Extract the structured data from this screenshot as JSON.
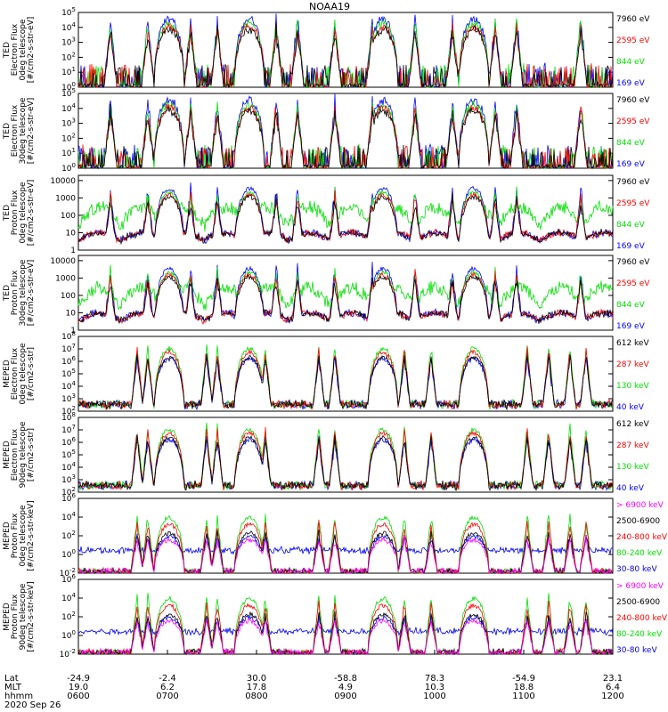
{
  "figure": {
    "title": "NOAA19",
    "date": "2020 Sep 26",
    "colors": {
      "black": "#000000",
      "red": "#ff0000",
      "green": "#00e000",
      "blue": "#0000ff",
      "magenta": "#ff00ff"
    }
  },
  "x_axis": {
    "row_labels": [
      "Lat",
      "MLT",
      "hhmm"
    ],
    "ticks": [
      {
        "lat": "-24.9",
        "mlt": "19.0",
        "hhmm": "0600"
      },
      {
        "lat": "-2.4",
        "mlt": "6.2",
        "hhmm": "0700"
      },
      {
        "lat": "30.0",
        "mlt": "17.8",
        "hhmm": "0800"
      },
      {
        "lat": "-58.8",
        "mlt": "4.9",
        "hhmm": "0900"
      },
      {
        "lat": "78.3",
        "mlt": "10.3",
        "hhmm": "1000"
      },
      {
        "lat": "-54.9",
        "mlt": "18.8",
        "hhmm": "1100"
      },
      {
        "lat": "23.1",
        "mlt": "6.4",
        "hhmm": "1200"
      }
    ]
  },
  "chart_data": [
    {
      "type": "line",
      "ylabel": [
        "TED",
        "Electron Flux",
        "0deg telescope",
        "[#/cm2-s-str-eV]"
      ],
      "yscale": "log",
      "ylim_exp": [
        0,
        5
      ],
      "tick_labels": [
        "10^0",
        "10^1",
        "10^2",
        "10^3",
        "10^4",
        "10^5"
      ],
      "xlim": [
        "0600",
        "1200"
      ],
      "series": [
        {
          "name": "7960 eV",
          "color": "#000000"
        },
        {
          "name": "2595 eV",
          "color": "#ff0000"
        },
        {
          "name": "844 eV",
          "color": "#00e000"
        },
        {
          "name": "169 eV",
          "color": "#0000ff"
        }
      ]
    },
    {
      "type": "line",
      "ylabel": [
        "TED",
        "Electron Flux",
        "30deg telescope",
        "[#/cm2-s-str-eV]"
      ],
      "yscale": "log",
      "ylim_exp": [
        0,
        5
      ],
      "tick_labels": [
        "10^0",
        "10^1",
        "10^2",
        "10^3",
        "10^4",
        "10^5"
      ],
      "xlim": [
        "0600",
        "1200"
      ],
      "series": [
        {
          "name": "7960 eV",
          "color": "#000000"
        },
        {
          "name": "2595 eV",
          "color": "#ff0000"
        },
        {
          "name": "844 eV",
          "color": "#00e000"
        },
        {
          "name": "169 eV",
          "color": "#0000ff"
        }
      ]
    },
    {
      "type": "line",
      "ylabel": [
        "TED",
        "Proton Flux",
        "0deg telescope",
        "[#/cm2-s-str-eV]"
      ],
      "yscale": "log",
      "ylim_exp": [
        0,
        4.3
      ],
      "tick_labels": [
        "1",
        "10",
        "100",
        "1000",
        "10000"
      ],
      "xlim": [
        "0600",
        "1200"
      ],
      "series": [
        {
          "name": "7960 eV",
          "color": "#000000"
        },
        {
          "name": "2595 eV",
          "color": "#ff0000"
        },
        {
          "name": "844 eV",
          "color": "#00e000"
        },
        {
          "name": "169 eV",
          "color": "#0000ff"
        }
      ]
    },
    {
      "type": "line",
      "ylabel": [
        "TED",
        "Proton Flux",
        "30deg telescope",
        "[#/cm2-s-str-eV]"
      ],
      "yscale": "log",
      "ylim_exp": [
        0,
        4.3
      ],
      "tick_labels": [
        "1",
        "10",
        "100",
        "1000",
        "10000"
      ],
      "xlim": [
        "0600",
        "1200"
      ],
      "series": [
        {
          "name": "7960 eV",
          "color": "#000000"
        },
        {
          "name": "2595 eV",
          "color": "#ff0000"
        },
        {
          "name": "844 eV",
          "color": "#00e000"
        },
        {
          "name": "169 eV",
          "color": "#0000ff"
        }
      ]
    },
    {
      "type": "line",
      "ylabel": [
        "MEPED",
        "Electron Flux",
        "0deg telescope",
        "[#/cm2-s-str]"
      ],
      "yscale": "log",
      "ylim_exp": [
        2,
        8
      ],
      "tick_labels": [
        "10^2",
        "10^3",
        "10^4",
        "10^5",
        "10^6",
        "10^7",
        "10^8"
      ],
      "xlim": [
        "0600",
        "1200"
      ],
      "series": [
        {
          "name": "612 keV",
          "color": "#000000"
        },
        {
          "name": "287 keV",
          "color": "#ff0000"
        },
        {
          "name": "130 keV",
          "color": "#00e000"
        },
        {
          "name": "40 keV",
          "color": "#0000ff"
        }
      ]
    },
    {
      "type": "line",
      "ylabel": [
        "MEPED",
        "Electron Flux",
        "90deg telescope",
        "[#/cm2-s-str]"
      ],
      "yscale": "log",
      "ylim_exp": [
        2,
        8
      ],
      "tick_labels": [
        "10^2",
        "10^3",
        "10^4",
        "10^5",
        "10^6",
        "10^7",
        "10^8"
      ],
      "xlim": [
        "0600",
        "1200"
      ],
      "series": [
        {
          "name": "612 keV",
          "color": "#000000"
        },
        {
          "name": "287 keV",
          "color": "#ff0000"
        },
        {
          "name": "130 keV",
          "color": "#00e000"
        },
        {
          "name": "40 keV",
          "color": "#0000ff"
        }
      ]
    },
    {
      "type": "line",
      "ylabel": [
        "MEPED",
        "Proton Flux",
        "0deg telescope",
        "[#/cm2-s-str-keV]"
      ],
      "yscale": "log",
      "ylim_exp": [
        -2,
        6
      ],
      "tick_labels": [
        "10^-2",
        "10^0",
        "10^2",
        "10^4",
        "10^6"
      ],
      "xlim": [
        "0600",
        "1200"
      ],
      "series": [
        {
          "name": "> 6900 keV",
          "color": "#ff00ff"
        },
        {
          "name": "2500-6900",
          "color": "#000000"
        },
        {
          "name": "240-800 keV",
          "color": "#ff0000"
        },
        {
          "name": "80-240 keV",
          "color": "#00e000"
        },
        {
          "name": "30-80 keV",
          "color": "#0000ff"
        }
      ]
    },
    {
      "type": "line",
      "ylabel": [
        "MEPED",
        "Proton Flux",
        "90deg telescope",
        "[#/cm2-s-str-keV]"
      ],
      "yscale": "log",
      "ylim_exp": [
        -2,
        6
      ],
      "tick_labels": [
        "10^-2",
        "10^0",
        "10^2",
        "10^4",
        "10^6"
      ],
      "xlim": [
        "0600",
        "1200"
      ],
      "series": [
        {
          "name": "> 6900 keV",
          "color": "#ff00ff"
        },
        {
          "name": "2500-6900",
          "color": "#000000"
        },
        {
          "name": "240-800 keV",
          "color": "#ff0000"
        },
        {
          "name": "80-240 keV",
          "color": "#00e000"
        },
        {
          "name": "30-80 keV",
          "color": "#0000ff"
        }
      ]
    }
  ]
}
